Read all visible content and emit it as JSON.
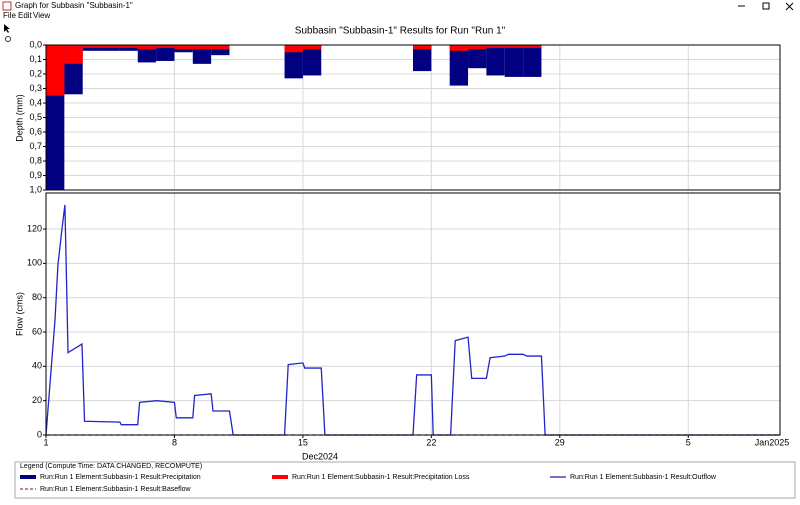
{
  "window": {
    "title": "Graph for Subbasin \"Subbasin-1\"",
    "menu": [
      "File",
      "Edit",
      "View"
    ]
  },
  "legend_title": "Legend (Compute Time: DATA CHANGED, RECOMPUTE)",
  "chart_data": [
    {
      "type": "bar",
      "title": "Subbasin \"Subbasin-1\" Results for Run \"Run 1\"",
      "y_label": "Depth (mm)",
      "y_inverted": true,
      "grid": true,
      "xlim": [
        1,
        41
      ],
      "ylim": [
        0,
        1.0
      ],
      "yticks": [
        {
          "value": 0,
          "label": "0,0"
        },
        {
          "value": 0.1,
          "label": "0,1"
        },
        {
          "value": 0.2,
          "label": "0,2"
        },
        {
          "value": 0.3,
          "label": "0,3"
        },
        {
          "value": 0.4,
          "label": "0,4"
        },
        {
          "value": 0.5,
          "label": "0,5"
        },
        {
          "value": 0.6,
          "label": "0,6"
        },
        {
          "value": 0.7,
          "label": "0,7"
        },
        {
          "value": 0.8,
          "label": "0,8"
        },
        {
          "value": 0.9,
          "label": "0,9"
        },
        {
          "value": 1.0,
          "label": "1,0"
        }
      ],
      "x": [
        1,
        2,
        3,
        4,
        5,
        6,
        7,
        8,
        9,
        10,
        14,
        15,
        21,
        23,
        24,
        25,
        26,
        27
      ],
      "series": [
        {
          "name": "Run:Run 1 Element:Subbasin-1 Result:Precipitation",
          "color": "#000080",
          "values": [
            1.0,
            0.34,
            0.04,
            0.04,
            0.04,
            0.12,
            0.11,
            0.05,
            0.13,
            0.07,
            0.23,
            0.21,
            0.18,
            0.28,
            0.16,
            0.21,
            0.22,
            0.22
          ]
        },
        {
          "name": "Run:Run 1 Element:Subbasin-1 Result:Precipitation Loss",
          "color": "#ff0000",
          "values": [
            0.35,
            0.13,
            0.02,
            0.02,
            0.02,
            0.03,
            0.02,
            0.03,
            0.03,
            0.03,
            0.05,
            0.03,
            0.03,
            0.04,
            0.03,
            0.02,
            0.02,
            0.02
          ]
        }
      ]
    },
    {
      "type": "line",
      "y_label": "Flow (cms)",
      "grid": true,
      "xlim": [
        1,
        41
      ],
      "ylim": [
        0,
        141
      ],
      "xticks": [
        1,
        8,
        15,
        22,
        29,
        {
          "value": 36,
          "label": "5"
        }
      ],
      "month_labels": [
        "Dec2024",
        "Jan2025"
      ],
      "yticks": [
        0,
        20,
        40,
        60,
        80,
        100,
        120
      ],
      "series": [
        {
          "name": "Run:Run 1 Element:Subbasin-1 Result:Outflow",
          "color": "#2424c8",
          "dash": false,
          "x": [
            1,
            1.49,
            1.65,
            1.87,
            2.03,
            2.14,
            2.2,
            2.96,
            3.1,
            5.03,
            5.1,
            6.0,
            6.1,
            7.04,
            8.0,
            8.1,
            9.0,
            9.1,
            10.0,
            10.1,
            11.0,
            11.2,
            14.0,
            14.2,
            15.0,
            15.1,
            16.0,
            16.2,
            21.0,
            21.2,
            22.0,
            22.1,
            23.05,
            23.3,
            24.0,
            24.2,
            25.0,
            25.2,
            26.0,
            26.2,
            27.0,
            27.2,
            28.0,
            28.2,
            41
          ],
          "values": [
            0,
            67,
            99,
            120,
            134,
            79,
            48,
            53,
            8,
            7.5,
            6,
            6,
            19,
            20,
            19,
            10,
            10,
            23,
            24,
            14,
            14,
            0,
            0,
            41,
            42,
            39,
            39,
            0,
            0,
            35,
            35,
            0,
            0,
            55,
            57,
            33,
            33,
            45,
            46,
            47,
            47,
            46,
            46,
            0,
            0
          ]
        },
        {
          "name": "Run:Run 1 Element:Subbasin-1 Result:Baseflow",
          "color": "#a04040",
          "dash": true,
          "x": [
            1,
            41
          ],
          "values": [
            0,
            0
          ]
        }
      ]
    }
  ]
}
